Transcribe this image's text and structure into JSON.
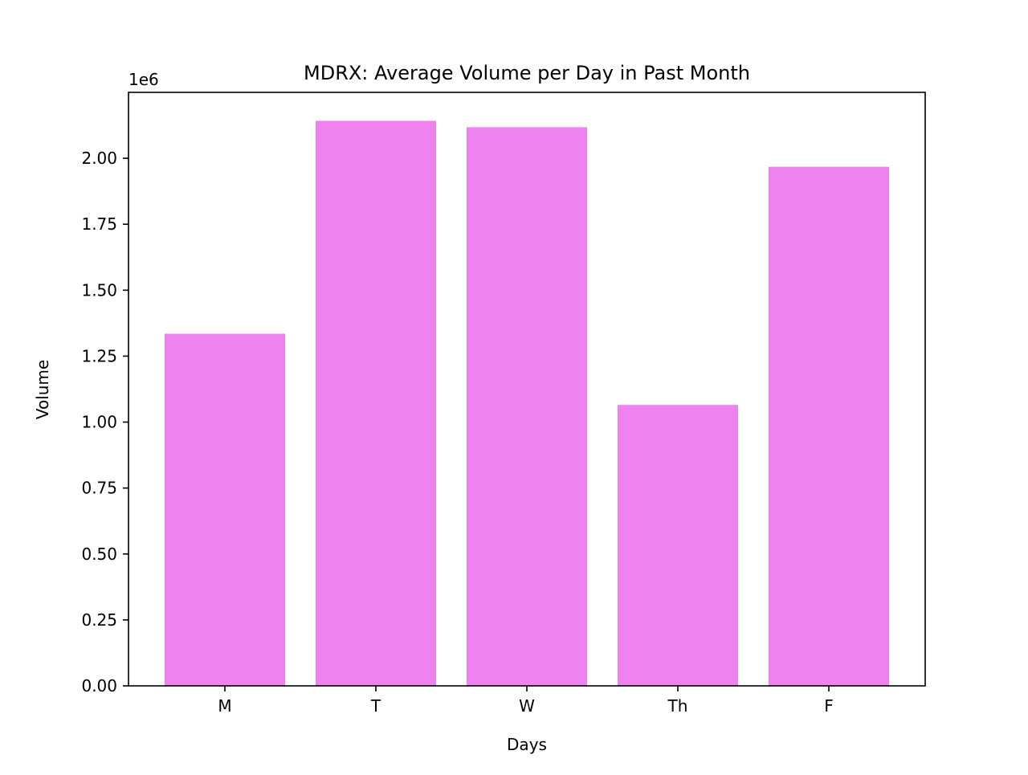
{
  "chart_data": {
    "type": "bar",
    "title": "MDRX: Average Volume per Day in Past Month",
    "xlabel": "Days",
    "ylabel": "Volume",
    "y_offset_label": "1e6",
    "y_scale": 1000000,
    "categories": [
      "M",
      "T",
      "W",
      "Th",
      "F"
    ],
    "values": [
      1335000,
      2142000,
      2118000,
      1065000,
      1968000
    ],
    "ylim": [
      0,
      2250000
    ],
    "yticks": [
      0,
      250000,
      500000,
      750000,
      1000000,
      1250000,
      1500000,
      1750000,
      2000000
    ],
    "ytick_labels": [
      "0.00",
      "0.25",
      "0.50",
      "0.75",
      "1.00",
      "1.25",
      "1.50",
      "1.75",
      "2.00"
    ],
    "bar_color": "#ee82ee",
    "grid": false,
    "legend": "none"
  }
}
